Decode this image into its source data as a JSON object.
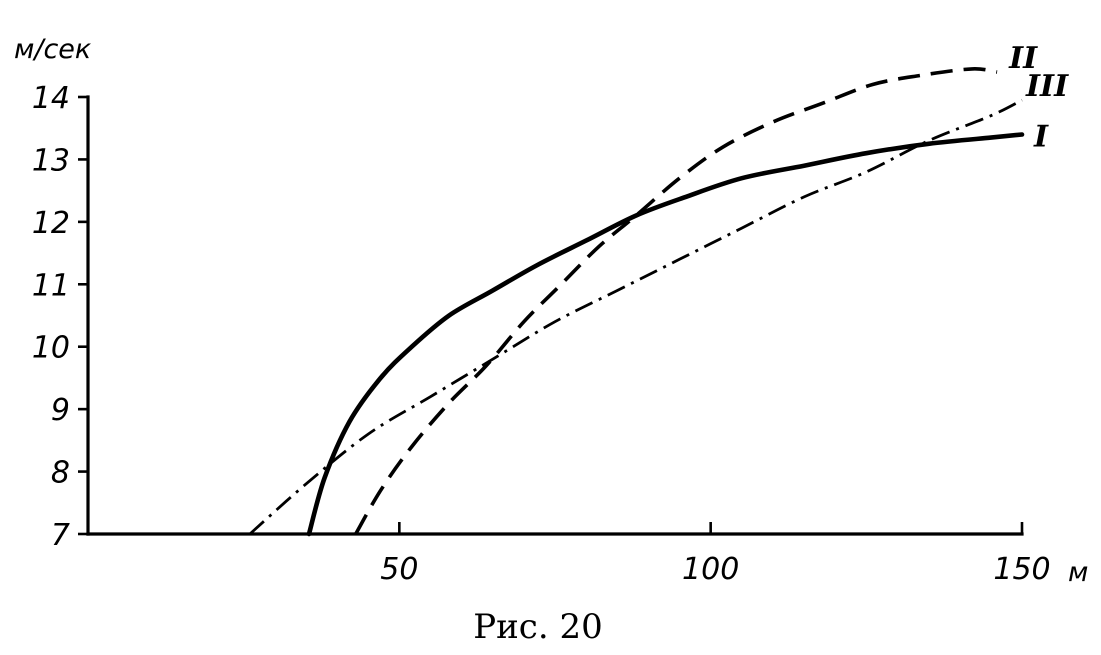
{
  "chart_data": {
    "type": "line",
    "y_unit_label": "м/сек",
    "x_unit_label": "м",
    "caption": "Рис. 20",
    "xlim": [
      0,
      150
    ],
    "ylim": [
      7,
      14
    ],
    "x_ticks": [
      {
        "value": 50,
        "label": "50"
      },
      {
        "value": 100,
        "label": "100"
      },
      {
        "value": 150,
        "label": "150"
      }
    ],
    "y_ticks": [
      {
        "value": 14,
        "label": "14"
      },
      {
        "value": 13,
        "label": "13"
      },
      {
        "value": 12,
        "label": "12"
      },
      {
        "value": 11,
        "label": "11"
      },
      {
        "value": 10,
        "label": "10"
      },
      {
        "value": 9,
        "label": "9"
      },
      {
        "value": 8,
        "label": "8"
      },
      {
        "value": 7,
        "label": "7"
      }
    ],
    "grid": false,
    "legend": "curve labels at right end of each curve",
    "series": [
      {
        "name": "I",
        "style": "solid",
        "x": [
          35.5,
          38,
          42,
          47,
          52,
          58,
          65,
          72,
          80,
          88,
          96,
          105,
          115,
          125,
          135,
          145,
          150
        ],
        "y": [
          7.0,
          7.9,
          8.8,
          9.5,
          10.0,
          10.5,
          10.9,
          11.3,
          11.7,
          12.1,
          12.4,
          12.7,
          12.9,
          13.1,
          13.25,
          13.35,
          13.4
        ]
      },
      {
        "name": "II",
        "style": "dashed",
        "x": [
          43,
          47,
          52,
          58,
          64,
          70,
          76,
          82,
          88,
          95,
          102,
          110,
          118,
          126,
          134,
          142,
          146
        ],
        "y": [
          7.0,
          7.7,
          8.4,
          9.1,
          9.7,
          10.4,
          11.0,
          11.6,
          12.1,
          12.7,
          13.2,
          13.6,
          13.9,
          14.2,
          14.35,
          14.45,
          14.4
        ]
      },
      {
        "name": "III",
        "style": "dashdot",
        "x": [
          26,
          35,
          45,
          55,
          65,
          75,
          85,
          95,
          105,
          115,
          125,
          135,
          145,
          150
        ],
        "y": [
          7.0,
          7.8,
          8.6,
          9.2,
          9.8,
          10.4,
          10.9,
          11.4,
          11.9,
          12.4,
          12.8,
          13.3,
          13.7,
          13.95
        ]
      }
    ]
  }
}
